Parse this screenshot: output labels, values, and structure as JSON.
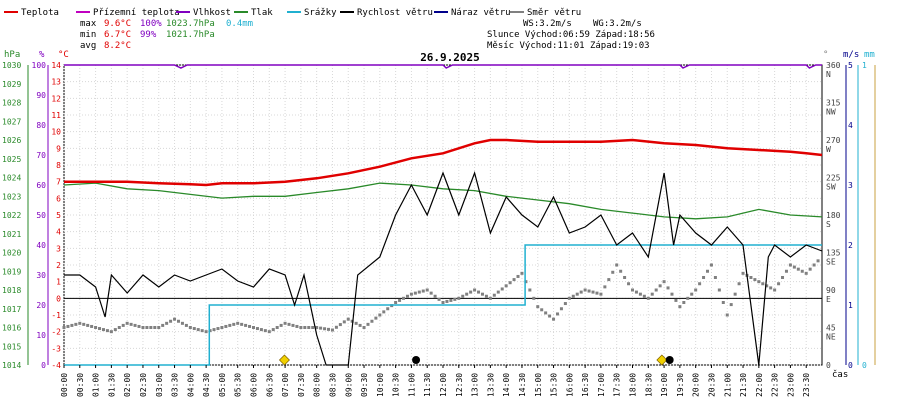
{
  "legend": [
    {
      "label": "Teplota",
      "color": "#e00000"
    },
    {
      "label": "Přízemní teplota",
      "color": "#c000c0"
    },
    {
      "label": "Vlhkost",
      "color": "#8000c0"
    },
    {
      "label": "Tlak",
      "color": "#2a8a2a"
    },
    {
      "label": "Srážky",
      "color": "#20b0d0"
    },
    {
      "label": "Rychlost větru",
      "color": "#000000"
    },
    {
      "label": "Náraz větru",
      "color": "#00008b"
    },
    {
      "label": "Směr větru",
      "color": "#808080"
    }
  ],
  "stats": {
    "max_label": "max",
    "max_temp": "9.6°C",
    "max_hum": "100%",
    "max_press": "1023.7hPa",
    "max_rain": "0.4mm",
    "min_label": "min",
    "min_temp": "6.7°C",
    "min_hum": "99%",
    "min_press": "1021.7hPa",
    "avg_label": "avg",
    "avg_temp": "8.2°C"
  },
  "info": {
    "ws": "WS:3.2m/s",
    "wg": "WG:3.2m/s",
    "sun": "Slunce Východ:06:59 Západ:18:56",
    "moon": "Měsíc  Východ:11:01 Západ:19:03"
  },
  "units": {
    "hpa": "hPa",
    "pct": "%",
    "degc": "°C",
    "deg": "°",
    "ms": "m/s",
    "mm": "mm"
  },
  "xlabel": "čas",
  "colors": {
    "temp": "#e00000",
    "humidity": "#8000c0",
    "pressure": "#2a8a2a",
    "rain": "#20b0d0",
    "wind": "#000000",
    "gust": "#00008b",
    "dir": "#808080",
    "hpa_axis": "#2a8a2a",
    "pct_axis": "#8000c0",
    "temp_axis": "#e00000",
    "ms_axis": "#00008b",
    "mm_axis": "#20b0d0",
    "gold_axis": "#c8a040"
  },
  "chart_data": {
    "type": "line",
    "title": "26.9.2025",
    "x_ticks": [
      "00:00",
      "00:30",
      "01:00",
      "01:30",
      "02:00",
      "02:30",
      "03:00",
      "03:30",
      "04:00",
      "04:30",
      "05:00",
      "05:30",
      "06:00",
      "06:30",
      "07:00",
      "07:30",
      "08:00",
      "08:30",
      "09:00",
      "09:30",
      "10:00",
      "10:30",
      "11:00",
      "11:30",
      "12:00",
      "12:30",
      "13:00",
      "13:30",
      "14:00",
      "14:30",
      "15:00",
      "15:30",
      "16:00",
      "16:30",
      "17:00",
      "17:30",
      "18:00",
      "18:30",
      "19:00",
      "19:30",
      "20:00",
      "20:30",
      "21:00",
      "21:30",
      "22:00",
      "22:30",
      "23:00",
      "23:30"
    ],
    "axes": {
      "pressure_hpa": {
        "min": 1014,
        "max": 1030,
        "ticks": [
          1014,
          1015,
          1016,
          1017,
          1018,
          1019,
          1020,
          1021,
          1022,
          1023,
          1024,
          1025,
          1026,
          1027,
          1028,
          1029,
          1030
        ]
      },
      "humidity_pct": {
        "min": 0,
        "max": 100,
        "ticks": [
          0,
          10,
          20,
          30,
          40,
          50,
          60,
          70,
          80,
          90,
          100
        ]
      },
      "temp_c": {
        "min": -4,
        "max": 14,
        "ticks": [
          -4,
          -3,
          -2,
          -1,
          0,
          1,
          2,
          3,
          4,
          5,
          6,
          7,
          8,
          9,
          10,
          11,
          12,
          13,
          14
        ]
      },
      "direction_deg": {
        "min": 0,
        "max": 360,
        "ticks": [
          {
            "v": 0,
            "t": "0"
          },
          {
            "v": 45,
            "t": "45",
            "d": "NE"
          },
          {
            "v": 90,
            "t": "90",
            "d": "E"
          },
          {
            "v": 135,
            "t": "135",
            "d": "SE"
          },
          {
            "v": 180,
            "t": "180",
            "d": "S"
          },
          {
            "v": 225,
            "t": "225",
            "d": "SW"
          },
          {
            "v": 270,
            "t": "270",
            "d": "W"
          },
          {
            "v": 315,
            "t": "315",
            "d": "NW"
          },
          {
            "v": 360,
            "t": "360",
            "d": "N"
          }
        ]
      },
      "wind_ms": {
        "min": 0,
        "max": 5,
        "ticks": [
          0,
          1,
          2,
          3,
          4,
          5
        ]
      },
      "rain_mm": {
        "min": 0,
        "max": 1,
        "ticks": [
          0,
          1
        ]
      }
    },
    "series": [
      {
        "name": "Teplota",
        "unit": "°C",
        "points": [
          [
            0,
            7.0
          ],
          [
            1,
            7.0
          ],
          [
            2,
            7.0
          ],
          [
            3,
            6.9
          ],
          [
            4,
            6.85
          ],
          [
            4.5,
            6.8
          ],
          [
            5,
            6.9
          ],
          [
            6,
            6.9
          ],
          [
            7,
            7.0
          ],
          [
            8,
            7.2
          ],
          [
            9,
            7.5
          ],
          [
            10,
            7.9
          ],
          [
            11,
            8.4
          ],
          [
            12,
            8.7
          ],
          [
            13,
            9.3
          ],
          [
            13.5,
            9.5
          ],
          [
            14,
            9.5
          ],
          [
            15,
            9.4
          ],
          [
            16,
            9.4
          ],
          [
            17,
            9.4
          ],
          [
            18,
            9.5
          ],
          [
            19,
            9.3
          ],
          [
            20,
            9.2
          ],
          [
            21,
            9.0
          ],
          [
            22,
            8.9
          ],
          [
            23,
            8.8
          ],
          [
            23.5,
            8.7
          ],
          [
            24,
            8.6
          ]
        ]
      },
      {
        "name": "Vlhkost",
        "unit": "%",
        "points": [
          [
            0,
            100
          ],
          [
            3.5,
            100
          ],
          [
            3.7,
            99
          ],
          [
            3.9,
            100
          ],
          [
            4,
            100
          ],
          [
            12,
            100
          ],
          [
            12.1,
            99
          ],
          [
            12.3,
            100
          ],
          [
            19.5,
            100
          ],
          [
            19.6,
            99
          ],
          [
            19.8,
            100
          ],
          [
            23.5,
            100
          ],
          [
            23.6,
            99
          ],
          [
            23.8,
            100
          ],
          [
            24,
            100
          ]
        ]
      },
      {
        "name": "Tlak",
        "unit": "hPa",
        "points": [
          [
            0,
            1023.6
          ],
          [
            1,
            1023.7
          ],
          [
            2,
            1023.4
          ],
          [
            3,
            1023.3
          ],
          [
            4,
            1023.1
          ],
          [
            5,
            1022.9
          ],
          [
            6,
            1023.0
          ],
          [
            7,
            1023.0
          ],
          [
            8,
            1023.2
          ],
          [
            9,
            1023.4
          ],
          [
            10,
            1023.7
          ],
          [
            11,
            1023.6
          ],
          [
            12,
            1023.4
          ],
          [
            13,
            1023.3
          ],
          [
            14,
            1023.0
          ],
          [
            15,
            1022.8
          ],
          [
            16,
            1022.6
          ],
          [
            17,
            1022.3
          ],
          [
            18,
            1022.1
          ],
          [
            19,
            1021.9
          ],
          [
            20,
            1021.8
          ],
          [
            21,
            1021.9
          ],
          [
            22,
            1022.3
          ],
          [
            23,
            1022.0
          ],
          [
            24,
            1021.9
          ]
        ]
      },
      {
        "name": "Srážky",
        "unit": "mm",
        "points": [
          [
            0,
            0
          ],
          [
            4.6,
            0
          ],
          [
            4.6,
            0.2
          ],
          [
            14.6,
            0.2
          ],
          [
            14.6,
            0.4
          ],
          [
            24,
            0.4
          ]
        ]
      },
      {
        "name": "Rychlost větru",
        "unit": "m/s",
        "points": [
          [
            0,
            1.5
          ],
          [
            0.5,
            1.5
          ],
          [
            1,
            1.3
          ],
          [
            1.3,
            0.8
          ],
          [
            1.5,
            1.5
          ],
          [
            2,
            1.2
          ],
          [
            2.5,
            1.5
          ],
          [
            3,
            1.3
          ],
          [
            3.5,
            1.5
          ],
          [
            4,
            1.4
          ],
          [
            4.5,
            1.5
          ],
          [
            5,
            1.6
          ],
          [
            5.5,
            1.4
          ],
          [
            6,
            1.3
          ],
          [
            6.5,
            1.6
          ],
          [
            7,
            1.5
          ],
          [
            7.3,
            1.0
          ],
          [
            7.6,
            1.5
          ],
          [
            8,
            0.5
          ],
          [
            8.3,
            0
          ],
          [
            9,
            0
          ],
          [
            9.3,
            1.5
          ],
          [
            10,
            1.8
          ],
          [
            10.5,
            2.5
          ],
          [
            11,
            3.0
          ],
          [
            11.5,
            2.5
          ],
          [
            12,
            3.2
          ],
          [
            12.5,
            2.5
          ],
          [
            13,
            3.2
          ],
          [
            13.5,
            2.2
          ],
          [
            14,
            2.8
          ],
          [
            14.5,
            2.5
          ],
          [
            15,
            2.3
          ],
          [
            15.5,
            2.8
          ],
          [
            16,
            2.2
          ],
          [
            16.5,
            2.3
          ],
          [
            17,
            2.5
          ],
          [
            17.5,
            2.0
          ],
          [
            18,
            2.2
          ],
          [
            18.5,
            1.8
          ],
          [
            19,
            3.2
          ],
          [
            19.3,
            2.0
          ],
          [
            19.5,
            2.5
          ],
          [
            20,
            2.2
          ],
          [
            20.5,
            2.0
          ],
          [
            21,
            2.3
          ],
          [
            21.5,
            2.0
          ],
          [
            22,
            0
          ],
          [
            22.3,
            1.8
          ],
          [
            22.5,
            2.0
          ],
          [
            23,
            1.8
          ],
          [
            23.5,
            2.0
          ],
          [
            24,
            1.9
          ]
        ]
      },
      {
        "name": "Směr větru",
        "unit": "°",
        "points": [
          [
            0,
            45
          ],
          [
            0.5,
            50
          ],
          [
            1,
            45
          ],
          [
            1.5,
            40
          ],
          [
            2,
            50
          ],
          [
            2.5,
            45
          ],
          [
            3,
            45
          ],
          [
            3.5,
            55
          ],
          [
            4,
            45
          ],
          [
            4.5,
            40
          ],
          [
            5,
            45
          ],
          [
            5.5,
            50
          ],
          [
            6,
            45
          ],
          [
            6.5,
            40
          ],
          [
            7,
            50
          ],
          [
            7.5,
            45
          ],
          [
            8,
            45
          ],
          [
            8.5,
            42
          ],
          [
            9,
            55
          ],
          [
            9.5,
            45
          ],
          [
            10,
            60
          ],
          [
            10.5,
            75
          ],
          [
            11,
            85
          ],
          [
            11.5,
            90
          ],
          [
            12,
            75
          ],
          [
            12.5,
            80
          ],
          [
            13,
            90
          ],
          [
            13.5,
            80
          ],
          [
            14,
            95
          ],
          [
            14.5,
            110
          ],
          [
            15,
            70
          ],
          [
            15.5,
            55
          ],
          [
            16,
            80
          ],
          [
            16.5,
            90
          ],
          [
            17,
            85
          ],
          [
            17.5,
            120
          ],
          [
            18,
            90
          ],
          [
            18.5,
            80
          ],
          [
            19,
            100
          ],
          [
            19.5,
            70
          ],
          [
            20,
            90
          ],
          [
            20.5,
            120
          ],
          [
            21,
            60
          ],
          [
            21.5,
            110
          ],
          [
            22,
            100
          ],
          [
            22.5,
            90
          ],
          [
            23,
            120
          ],
          [
            23.5,
            110
          ],
          [
            24,
            130
          ]
        ]
      }
    ],
    "markers": [
      {
        "name": "sunrise",
        "x": 6.98,
        "symbol": "sun"
      },
      {
        "name": "moonrise",
        "x": 11.02,
        "symbol": "moon"
      },
      {
        "name": "sunset",
        "x": 18.93,
        "symbol": "sun"
      },
      {
        "name": "moonset",
        "x": 19.05,
        "symbol": "moon"
      }
    ]
  }
}
